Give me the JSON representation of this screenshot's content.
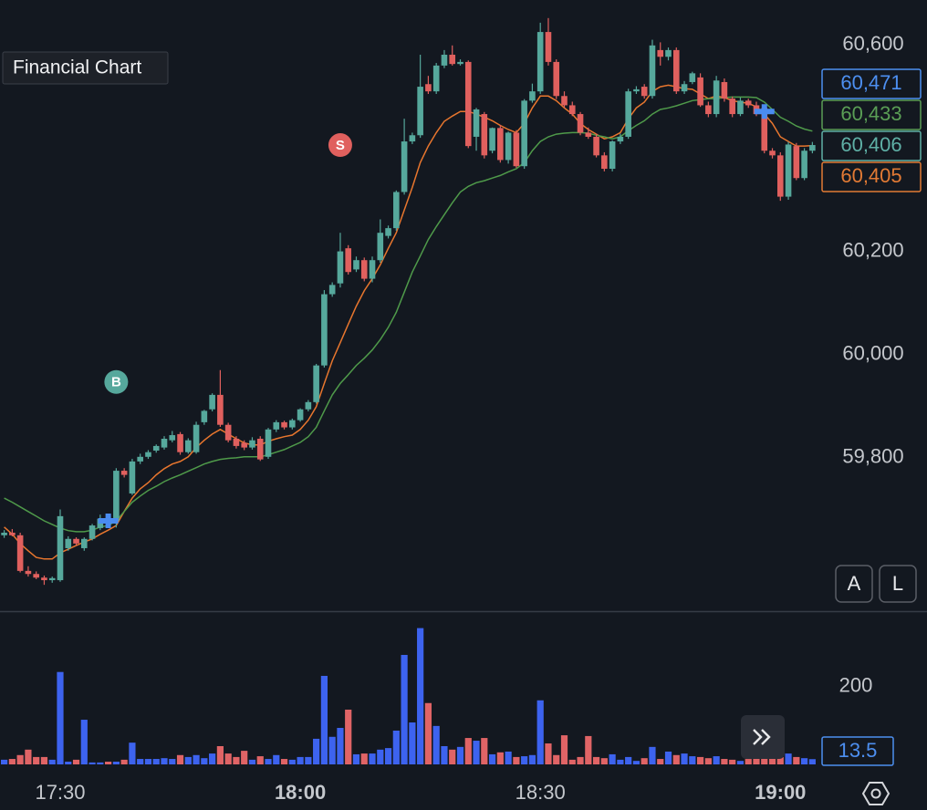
{
  "chart_data": {
    "type": "candlestick",
    "title": "Financial Chart",
    "x": [
      "17:23",
      "17:24",
      "17:25",
      "17:26",
      "17:27",
      "17:28",
      "17:29",
      "17:30",
      "17:31",
      "17:32",
      "17:33",
      "17:34",
      "17:35",
      "17:36",
      "17:37",
      "17:38",
      "17:39",
      "17:40",
      "17:41",
      "17:42",
      "17:43",
      "17:44",
      "17:45",
      "17:46",
      "17:47",
      "17:48",
      "17:49",
      "17:50",
      "17:51",
      "17:52",
      "17:53",
      "17:54",
      "17:55",
      "17:56",
      "17:57",
      "17:58",
      "17:59",
      "18:00",
      "18:01",
      "18:02",
      "18:03",
      "18:04",
      "18:05",
      "18:06",
      "18:07",
      "18:08",
      "18:09",
      "18:10",
      "18:11",
      "18:12",
      "18:13",
      "18:14",
      "18:15",
      "18:16",
      "18:17",
      "18:18",
      "18:19",
      "18:20",
      "18:21",
      "18:22",
      "18:23",
      "18:24",
      "18:25",
      "18:26",
      "18:27",
      "18:28",
      "18:29",
      "18:30",
      "18:31",
      "18:32",
      "18:33",
      "18:34",
      "18:35",
      "18:36",
      "18:37",
      "18:38",
      "18:39",
      "18:40",
      "18:41",
      "18:42",
      "18:43",
      "18:44",
      "18:45",
      "18:46",
      "18:47",
      "18:48",
      "18:49",
      "18:50",
      "18:51",
      "18:52",
      "18:53",
      "18:54",
      "18:55",
      "18:56",
      "18:57",
      "18:58",
      "18:59",
      "19:00",
      "19:01",
      "19:02",
      "19:03",
      "19:04"
    ],
    "xticks": [
      "17:30",
      "18:00",
      "18:30",
      "19:00"
    ],
    "ohlc": [
      [
        59650,
        59660,
        59645,
        59655
      ],
      [
        59655,
        59662,
        59648,
        59650
      ],
      [
        59650,
        59655,
        59578,
        59581
      ],
      [
        59581,
        59590,
        59570,
        59575
      ],
      [
        59575,
        59580,
        59565,
        59568
      ],
      [
        59568,
        59572,
        59554,
        59563
      ],
      [
        59563,
        59570,
        59558,
        59567
      ],
      [
        59563,
        59700,
        59560,
        59687
      ],
      [
        59625,
        59648,
        59620,
        59643
      ],
      [
        59643,
        59646,
        59630,
        59634
      ],
      [
        59625,
        59646,
        59620,
        59643
      ],
      [
        59643,
        59672,
        59640,
        59669
      ],
      [
        59664,
        59690,
        59660,
        59682
      ],
      [
        59682,
        59688,
        59672,
        59678
      ],
      [
        59678,
        59780,
        59665,
        59775
      ],
      [
        59775,
        59780,
        59762,
        59767
      ],
      [
        59731,
        59798,
        59728,
        59793
      ],
      [
        59793,
        59808,
        59788,
        59802
      ],
      [
        59802,
        59815,
        59798,
        59811
      ],
      [
        59814,
        59826,
        59810,
        59823
      ],
      [
        59820,
        59842,
        59816,
        59837
      ],
      [
        59834,
        59852,
        59830,
        59844
      ],
      [
        59846,
        59850,
        59806,
        59811
      ],
      [
        59811,
        59838,
        59808,
        59834
      ],
      [
        59811,
        59870,
        59808,
        59864
      ],
      [
        59869,
        59893,
        59864,
        59891
      ],
      [
        59894,
        59925,
        59890,
        59922
      ],
      [
        59922,
        59970,
        59860,
        59864
      ],
      [
        59864,
        59868,
        59830,
        59834
      ],
      [
        59837,
        59842,
        59818,
        59823
      ],
      [
        59829,
        59834,
        59815,
        59820
      ],
      [
        59820,
        59840,
        59816,
        59834
      ],
      [
        59837,
        59842,
        59794,
        59797
      ],
      [
        59802,
        59858,
        59798,
        59855
      ],
      [
        59855,
        59873,
        59850,
        59869
      ],
      [
        59869,
        59872,
        59855,
        59859
      ],
      [
        59859,
        59876,
        59855,
        59873
      ],
      [
        59873,
        59896,
        59870,
        59894
      ],
      [
        59894,
        59912,
        59890,
        59908
      ],
      [
        59908,
        59982,
        59905,
        59979
      ],
      [
        59979,
        60125,
        59975,
        60117
      ],
      [
        60117,
        60140,
        60112,
        60135
      ],
      [
        60138,
        60236,
        60130,
        60200
      ],
      [
        60206,
        60212,
        60155,
        60160
      ],
      [
        60165,
        60190,
        60160,
        60183
      ],
      [
        60183,
        60188,
        60142,
        60147
      ],
      [
        60147,
        60190,
        60140,
        60183
      ],
      [
        60183,
        60262,
        60178,
        60236
      ],
      [
        60230,
        60250,
        60225,
        60245
      ],
      [
        60245,
        60318,
        60240,
        60315
      ],
      [
        60315,
        60457,
        60310,
        60413
      ],
      [
        60413,
        60430,
        60408,
        60425
      ],
      [
        60425,
        60581,
        60420,
        60519
      ],
      [
        60524,
        60540,
        60505,
        60510
      ],
      [
        60510,
        60565,
        60505,
        60560
      ],
      [
        60560,
        60590,
        60555,
        60581
      ],
      [
        60581,
        60599,
        60560,
        60563
      ],
      [
        60563,
        60572,
        60560,
        60567
      ],
      [
        60567,
        60570,
        60400,
        60404
      ],
      [
        60422,
        60478,
        60395,
        60475
      ],
      [
        60466,
        60470,
        60380,
        60386
      ],
      [
        60395,
        60440,
        60390,
        60439
      ],
      [
        60439,
        60445,
        60372,
        60377
      ],
      [
        60377,
        60432,
        60370,
        60430
      ],
      [
        60430,
        60435,
        60362,
        60365
      ],
      [
        60365,
        60495,
        60360,
        60492
      ],
      [
        60492,
        60525,
        60488,
        60510
      ],
      [
        60510,
        60643,
        60505,
        60625
      ],
      [
        60625,
        60652,
        60560,
        60567
      ],
      [
        60567,
        60572,
        60495,
        60501
      ],
      [
        60501,
        60510,
        60478,
        60483
      ],
      [
        60483,
        60490,
        60462,
        60466
      ],
      [
        60466,
        60470,
        60425,
        60430
      ],
      [
        60430,
        60440,
        60418,
        60422
      ],
      [
        60422,
        60428,
        60382,
        60386
      ],
      [
        60386,
        60392,
        60355,
        60360
      ],
      [
        60360,
        60415,
        60355,
        60413
      ],
      [
        60413,
        60428,
        60408,
        60422
      ],
      [
        60422,
        60515,
        60418,
        60510
      ],
      [
        60510,
        60520,
        60505,
        60514
      ],
      [
        60519,
        60524,
        60496,
        60501
      ],
      [
        60501,
        60610,
        60496,
        60599
      ],
      [
        60590,
        60605,
        60560,
        60577
      ],
      [
        60577,
        60595,
        60570,
        60590
      ],
      [
        60590,
        60595,
        60505,
        60510
      ],
      [
        60510,
        60530,
        60505,
        60524
      ],
      [
        60528,
        60548,
        60524,
        60545
      ],
      [
        60537,
        60545,
        60480,
        60483
      ],
      [
        60483,
        60490,
        60460,
        60466
      ],
      [
        60466,
        60540,
        60460,
        60531
      ],
      [
        60528,
        60535,
        60490,
        60496
      ],
      [
        60496,
        60500,
        60460,
        60466
      ],
      [
        60466,
        60498,
        60462,
        60492
      ],
      [
        60492,
        60496,
        60478,
        60483
      ],
      [
        60483,
        60490,
        60462,
        60466
      ],
      [
        60478,
        60482,
        60390,
        60395
      ],
      [
        60395,
        60400,
        60380,
        60386
      ],
      [
        60386,
        60392,
        60298,
        60306
      ],
      [
        60306,
        60412,
        60300,
        60407
      ],
      [
        60404,
        60410,
        60338,
        60342
      ],
      [
        60342,
        60400,
        60338,
        60395
      ],
      [
        60395,
        60412,
        60390,
        60406
      ]
    ],
    "up_color": "#56a89c",
    "down_color": "#e0605e",
    "ylim": [
      59503,
      60687
    ],
    "yticks": [
      {
        "value": 60600,
        "label": "60,600"
      },
      {
        "value": 60200,
        "label": "60,200"
      },
      {
        "value": 60000,
        "label": "60,000"
      },
      {
        "value": 59800,
        "label": "59,800"
      }
    ],
    "grid": true,
    "overlays": [
      {
        "color": "#e8762e",
        "values": [
          59666,
          59652,
          59634,
          59620,
          59607,
          59604,
          59604,
          59616,
          59623,
          59630,
          59637,
          59643,
          59652,
          59660,
          59669,
          59696,
          59722,
          59740,
          59752,
          59767,
          59779,
          59788,
          59793,
          59802,
          59820,
          59834,
          59846,
          59855,
          59846,
          59837,
          59829,
          59825,
          59825,
          59832,
          59837,
          59841,
          59844,
          59855,
          59873,
          59899,
          59944,
          59988,
          60023,
          60059,
          60094,
          60124,
          60147,
          60174,
          60206,
          60236,
          60280,
          60324,
          60372,
          60404,
          60430,
          60452,
          60462,
          60471,
          60471,
          60466,
          60460,
          60453,
          60444,
          60436,
          60430,
          60448,
          60478,
          60501,
          60501,
          60492,
          60478,
          60466,
          60448,
          60436,
          60427,
          60418,
          60422,
          60430,
          60457,
          60478,
          60489,
          60510,
          60519,
          60522,
          60519,
          60515,
          60514,
          60505,
          60496,
          60501,
          60498,
          60492,
          60489,
          60487,
          60480,
          60466,
          60448,
          60422,
          60413,
          60404,
          60404,
          60405
        ]
      },
      {
        "color": "#4f9a4a",
        "values": [
          59722,
          59714,
          59705,
          59696,
          59687,
          59678,
          59671,
          59664,
          59659,
          59657,
          59657,
          59660,
          59666,
          59669,
          59678,
          59696,
          59714,
          59726,
          59737,
          59745,
          59754,
          59761,
          59767,
          59774,
          59781,
          59788,
          59793,
          59797,
          59799,
          59800,
          59802,
          59802,
          59802,
          59806,
          59811,
          59816,
          59823,
          59830,
          59841,
          59859,
          59891,
          59922,
          59944,
          59961,
          59979,
          59993,
          60009,
          60029,
          60053,
          60082,
          60121,
          60160,
          60191,
          60223,
          60248,
          60271,
          60294,
          60315,
          60326,
          60333,
          60337,
          60342,
          60347,
          60354,
          60360,
          60372,
          60395,
          60413,
          60422,
          60427,
          60429,
          60430,
          60430,
          60429,
          60425,
          60422,
          60418,
          60422,
          60434,
          60444,
          60453,
          60466,
          60475,
          60478,
          60482,
          60487,
          60492,
          60494,
          60496,
          60496,
          60498,
          60499,
          60499,
          60499,
          60498,
          60489,
          60475,
          60460,
          60452,
          60443,
          60437,
          60433
        ]
      }
    ],
    "markers": [
      {
        "label": "B",
        "x": "17:37",
        "value": 59947,
        "color": "#56a89c"
      },
      {
        "label": "S",
        "x": "18:05",
        "value": 60406,
        "color": "#e0605e"
      }
    ],
    "executions": [
      {
        "x": "17:36",
        "value": 59678,
        "color": "#4a8cf0"
      },
      {
        "x": "18:58",
        "value": 60471,
        "color": "#4a8cf0"
      }
    ],
    "price_labels": [
      {
        "value": 60471,
        "label": "60,471",
        "color": "#4d8ff0"
      },
      {
        "value": 60433,
        "label": "60,433",
        "color": "#5a9e55"
      },
      {
        "value": 60406,
        "label": "60,406",
        "color": "#5fb0a6"
      },
      {
        "value": 60405,
        "label": "60,405",
        "color": "#e27a34"
      }
    ],
    "volume": {
      "values": [
        12,
        14,
        24,
        38,
        19,
        19,
        12,
        238,
        7,
        12,
        115,
        5,
        5,
        7,
        7,
        12,
        56,
        14,
        14,
        14,
        16,
        14,
        24,
        19,
        24,
        16,
        28,
        47,
        28,
        19,
        35,
        12,
        21,
        14,
        24,
        14,
        12,
        19,
        19,
        66,
        228,
        71,
        94,
        141,
        26,
        28,
        28,
        38,
        42,
        87,
        282,
        108,
        351,
        158,
        99,
        47,
        38,
        45,
        68,
        61,
        68,
        26,
        31,
        33,
        19,
        21,
        24,
        165,
        54,
        24,
        75,
        12,
        19,
        73,
        19,
        16,
        26,
        12,
        19,
        9,
        16,
        45,
        14,
        33,
        24,
        28,
        21,
        19,
        16,
        21,
        14,
        12,
        9,
        14,
        19,
        56,
        24,
        19,
        28,
        19,
        16,
        13.5
      ],
      "up_color": "#3d63ef",
      "down_color": "#e06466",
      "label_color": "#4d8ff0",
      "ylim": [
        0,
        390
      ],
      "yticks": [
        200
      ]
    },
    "buttons": [
      "A",
      "L"
    ]
  }
}
